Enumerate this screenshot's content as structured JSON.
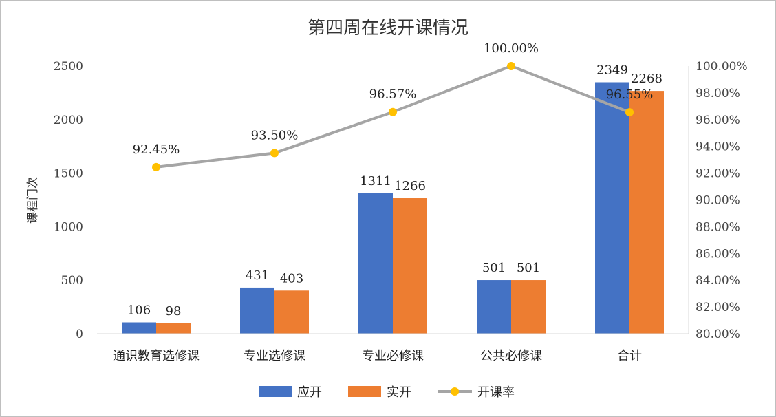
{
  "chart_data": {
    "type": "bar",
    "title": "第四周在线开课情况",
    "ylabel": "课程门次",
    "categories": [
      "通识教育选修课",
      "专业选修课",
      "专业必修课",
      "公共必修课",
      "合计"
    ],
    "series": [
      {
        "name": "应开",
        "type": "bar",
        "color": "#4472C4",
        "values": [
          106,
          431,
          1311,
          501,
          2349
        ]
      },
      {
        "name": "实开",
        "type": "bar",
        "color": "#ED7D31",
        "values": [
          98,
          403,
          1266,
          501,
          2268
        ]
      },
      {
        "name": "开课率",
        "type": "line",
        "axis": "right",
        "color": "#A5A5A5",
        "marker_color": "#FFC000",
        "values": [
          92.45,
          93.5,
          96.57,
          100.0,
          96.55
        ],
        "labels": [
          "92.45%",
          "93.50%",
          "96.57%",
          "100.00%",
          "96.55%"
        ]
      }
    ],
    "ylim": [
      0,
      2500
    ],
    "yticks": [
      "0",
      "500",
      "1000",
      "1500",
      "2000",
      "2500"
    ],
    "y2lim": [
      80,
      100
    ],
    "y2ticks": [
      "80.00%",
      "82.00%",
      "84.00%",
      "86.00%",
      "88.00%",
      "90.00%",
      "92.00%",
      "94.00%",
      "96.00%",
      "98.00%",
      "100.00%"
    ],
    "grid": false,
    "legend_position": "bottom"
  }
}
